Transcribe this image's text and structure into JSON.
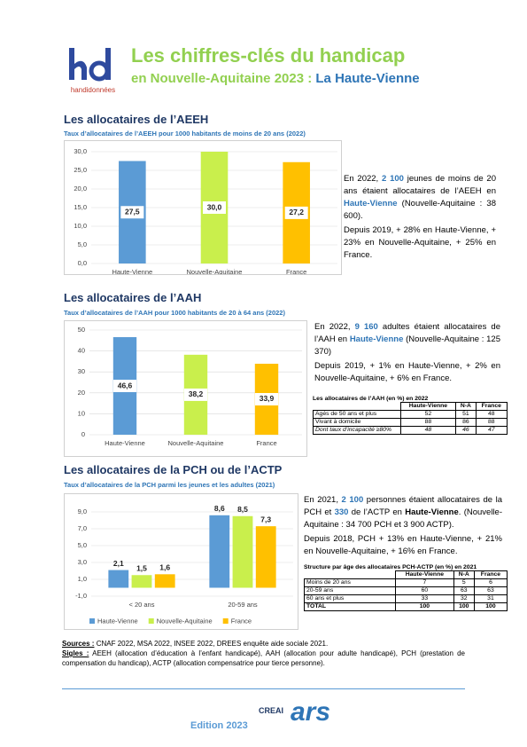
{
  "header": {
    "logo_text": "handidonnées",
    "title": "Les chiffres-clés du handicap",
    "subtitle": "en Nouvelle-Aquitaine 2023 : ",
    "subtitle_place": "La Haute-Vienne"
  },
  "sections": [
    {
      "heading": "Les allocataires de l’AEEH",
      "paragraphs": [
        [
          {
            "text": "En 2022, "
          },
          {
            "text": "2 100",
            "style": "hl"
          },
          {
            "text": " jeunes de moins de 20 ans étaient allocataires de l’AEEH en "
          },
          {
            "text": "Haute-Vienne",
            "style": "hl"
          },
          {
            "text": " (Nouvelle-Aquitaine : 38 600)."
          }
        ],
        [
          {
            "text": "Depuis 2019, + 28% en Haute-Vienne, + 23% en Nouvelle-Aquitaine, + 25% en France."
          }
        ]
      ]
    },
    {
      "heading": "Les allocataires de l’AAH",
      "paragraphs": [
        [
          {
            "text": "En 2022, "
          },
          {
            "text": "9 160",
            "style": "hl"
          },
          {
            "text": " adultes étaient allocataires de l’AAH en "
          },
          {
            "text": "Haute-Vienne",
            "style": "hl"
          },
          {
            "text": " (Nouvelle-Aquitaine : 125 370)"
          }
        ],
        [
          {
            "text": "Depuis 2019, + 1% en Haute-Vienne, + 2% en Nouvelle-Aquitaine, + 6% en France."
          }
        ]
      ],
      "table": {
        "title": "Les allocataires de l’AAH (en %) en 2022",
        "columns": [
          "Haute-Vienne",
          "N-A",
          "France"
        ],
        "rows": [
          {
            "label": "Agés de 50 ans et plus",
            "values": [
              52,
              51,
              48
            ]
          },
          {
            "label": "Vivant à domicile",
            "values": [
              88,
              86,
              88
            ]
          },
          {
            "label": "Dont taux d’incapacité ≥80%",
            "values": [
              48,
              46,
              47
            ],
            "italic": true
          }
        ]
      }
    },
    {
      "heading": "Les allocataires de la PCH ou de l’ACTP",
      "paragraphs": [
        [
          {
            "text": "En 2021, "
          },
          {
            "text": "2 100",
            "style": "hl"
          },
          {
            "text": " personnes étaient allocataires de la PCH et "
          },
          {
            "text": "330",
            "style": "hl"
          },
          {
            "text": " de l’ACTP en "
          },
          {
            "text": "Haute-Vienne",
            "style": "b"
          },
          {
            "text": ". (Nouvelle-Aquitaine : 34 700 PCH et 3 900 ACTP)."
          }
        ],
        [
          {
            "text": "Depuis 2018, PCH + 13% en Haute-Vienne, + 21% en Nouvelle-Aquitaine, + 16% en France."
          }
        ]
      ],
      "table": {
        "title": "Structure par âge des allocataires PCH-ACTP (en %) en 2021",
        "columns": [
          "Haute-Vienne",
          "N-A",
          "France"
        ],
        "rows": [
          {
            "label": "Moins de 20 ans",
            "values": [
              7,
              5,
              6
            ]
          },
          {
            "label": "20-59 ans",
            "values": [
              60,
              63,
              63
            ]
          },
          {
            "label": "60 ans et plus",
            "values": [
              33,
              32,
              31
            ]
          },
          {
            "label": "TOTAL",
            "values": [
              100,
              100,
              100
            ],
            "bold": true
          }
        ]
      }
    }
  ],
  "chart_data": [
    {
      "type": "bar",
      "title": "Taux d’allocataires de l’AEEH pour 1000 habitants de moins de 20 ans (2022)",
      "categories": [
        "Haute-Vienne",
        "Nouvelle-Aquitaine",
        "France"
      ],
      "values": [
        27.5,
        30.0,
        27.2
      ],
      "value_labels": [
        "27,5",
        "30,0",
        "27,2"
      ],
      "colors": [
        "#5b9bd5",
        "#c9ef4c",
        "#ffc000"
      ],
      "ylim": [
        0,
        30
      ],
      "yticks": [
        {
          "value": 0,
          "label": "0,0"
        },
        {
          "value": 5,
          "label": "5,0"
        },
        {
          "value": 10,
          "label": "10,0"
        },
        {
          "value": 15,
          "label": "15,0"
        },
        {
          "value": 20,
          "label": "20,0"
        },
        {
          "value": 25,
          "label": "25,0"
        },
        {
          "value": 30,
          "label": "30,0"
        }
      ],
      "grid": true
    },
    {
      "type": "bar",
      "title": "Taux d’allocataires de l’AAH pour 1000 habitants de 20 à 64 ans (2022)",
      "categories": [
        "Haute-Vienne",
        "Nouvelle-Aquitaine",
        "France"
      ],
      "values": [
        46.6,
        38.2,
        33.9
      ],
      "value_labels": [
        "46,6",
        "38,2",
        "33,9"
      ],
      "colors": [
        "#5b9bd5",
        "#c9ef4c",
        "#ffc000"
      ],
      "ylim": [
        0,
        50
      ],
      "yticks": [
        0,
        10,
        20,
        30,
        40,
        50
      ],
      "grid": true
    },
    {
      "type": "bar",
      "title": "Taux d’allocataires de la PCH parmi les jeunes et les adultes (2021)",
      "categories": [
        "< 20 ans",
        "20-59 ans"
      ],
      "series": [
        {
          "name": "Haute-Vienne",
          "color": "#5b9bd5",
          "values": [
            2.1,
            8.6
          ],
          "value_labels": [
            "2,1",
            "8,6"
          ]
        },
        {
          "name": "Nouvelle-Aquitaine",
          "color": "#c9ef4c",
          "values": [
            1.5,
            8.5
          ],
          "value_labels": [
            "1,5",
            "8,5"
          ]
        },
        {
          "name": "France",
          "color": "#ffc000",
          "values": [
            1.6,
            7.3
          ],
          "value_labels": [
            "1,6",
            "7,3"
          ]
        }
      ],
      "ylim": [
        -1,
        9
      ],
      "yticks": [
        {
          "value": -1,
          "label": "-1,0"
        },
        {
          "value": 1,
          "label": "1,0"
        },
        {
          "value": 3,
          "label": "3,0"
        },
        {
          "value": 5,
          "label": "5,0"
        },
        {
          "value": 7,
          "label": "7,0"
        },
        {
          "value": 9,
          "label": "9,0"
        }
      ],
      "grid": true,
      "legend": "bottom"
    }
  ],
  "footer": {
    "sources": [
      {
        "text": "Sources :",
        "style": "bu"
      },
      {
        "text": " CNAF 2022, MSA 2022, INSEE 2022, DREES enquête aide sociale 2021."
      }
    ],
    "sigles": [
      {
        "text": "Sigles :",
        "style": "bu"
      },
      {
        "text": " AEEH (allocation d’éducation à l’enfant handicapé), AAH (allocation pour adulte handicapé), PCH (prestation de compensation du handicap), ACTP (allocation compensatrice pour tierce personne)."
      }
    ],
    "edition": "Edition 2023",
    "partners": [
      "CREAI",
      "ars"
    ]
  }
}
